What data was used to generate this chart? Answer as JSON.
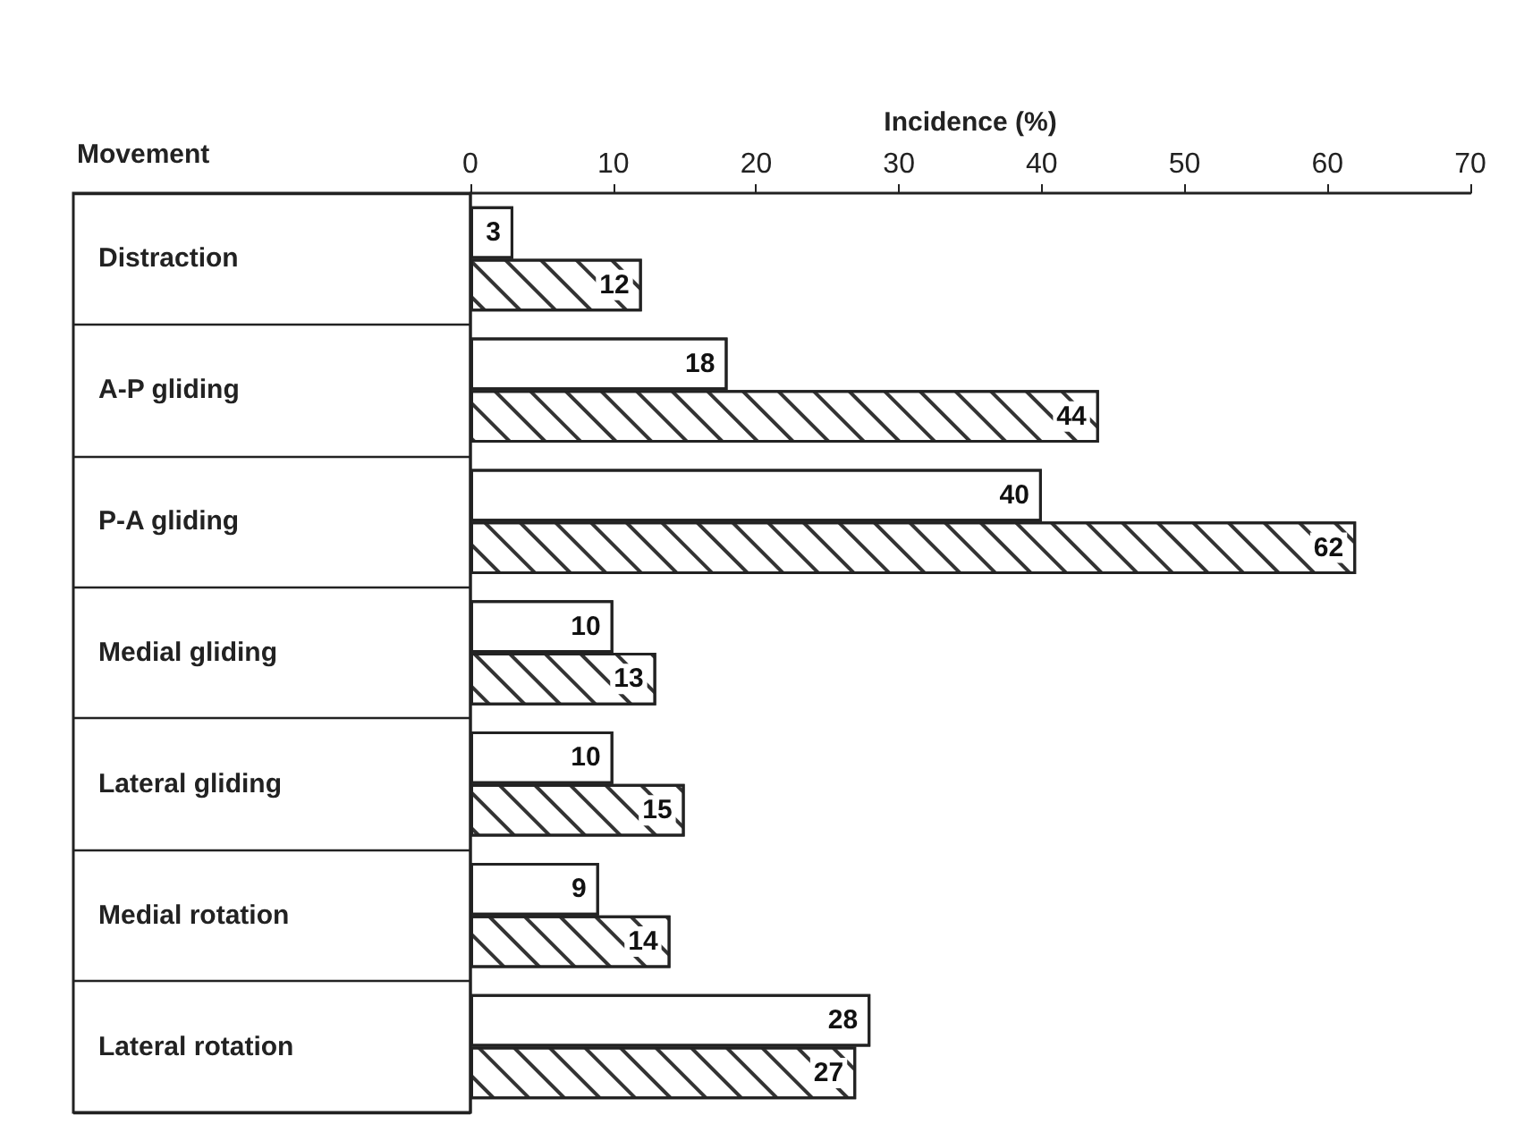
{
  "chart_data": {
    "type": "bar",
    "orientation": "horizontal",
    "xlabel": "Incidence (%)",
    "ylabel": "Movement",
    "categories": [
      "Distraction",
      "A-P gliding",
      "P-A gliding",
      "Medial gliding",
      "Lateral gliding",
      "Medial rotation",
      "Lateral rotation"
    ],
    "series": [
      {
        "color": "#ffffff",
        "values": [
          3,
          18,
          40,
          10,
          10,
          9,
          28
        ]
      },
      {
        "color": "#ffffff",
        "values": [
          12,
          44,
          62,
          13,
          15,
          14,
          27
        ]
      }
    ],
    "xlim": [
      0,
      70
    ],
    "xticks": [
      0,
      10,
      20,
      30,
      40,
      50,
      60,
      70
    ],
    "data_labels": true,
    "grid": false
  }
}
